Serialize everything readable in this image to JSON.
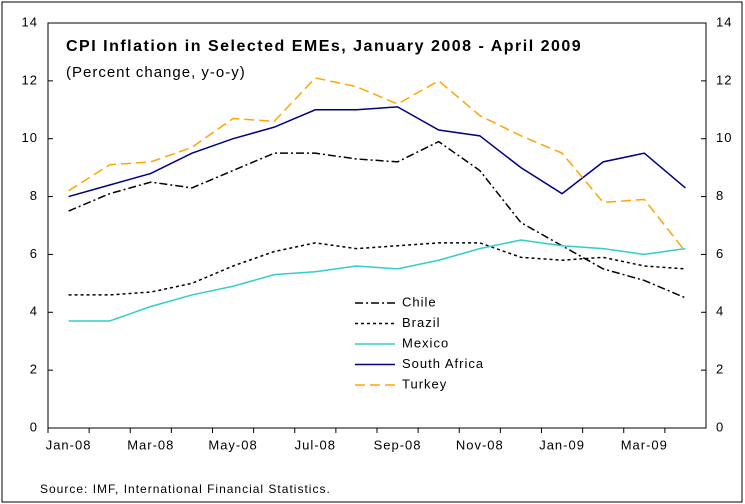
{
  "chart_data": {
    "type": "line",
    "title": "CPI Inflation in Selected EMEs, January 2008 - April 2009",
    "subtitle": "(Percent change, y-o-y)",
    "source": "Source: IMF, International Financial Statistics.",
    "categories": [
      "Jan-08",
      null,
      "Mar-08",
      null,
      "May-08",
      null,
      "Jul-08",
      null,
      "Sep-08",
      null,
      "Nov-08",
      null,
      "Jan-09",
      null,
      "Mar-09",
      null
    ],
    "series": [
      {
        "name": "Chile",
        "color": "#000000",
        "dash": "8,3,2,3",
        "values": [
          7.5,
          8.1,
          8.5,
          8.3,
          8.9,
          9.5,
          9.5,
          9.3,
          9.2,
          9.9,
          8.9,
          7.1,
          6.3,
          5.5,
          5.1,
          4.5
        ]
      },
      {
        "name": "Brazil",
        "color": "#000000",
        "dash": "3,3",
        "values": [
          4.6,
          4.6,
          4.7,
          5.0,
          5.6,
          6.1,
          6.4,
          6.2,
          6.3,
          6.4,
          6.4,
          5.9,
          5.8,
          5.9,
          5.6,
          5.5
        ]
      },
      {
        "name": "Mexico",
        "color": "#33cccc",
        "dash": "none",
        "values": [
          3.7,
          3.7,
          4.2,
          4.6,
          4.9,
          5.3,
          5.4,
          5.6,
          5.5,
          5.8,
          6.2,
          6.5,
          6.3,
          6.2,
          6.0,
          6.2
        ]
      },
      {
        "name": "South Africa",
        "color": "#000080",
        "dash": "none",
        "values": [
          8.0,
          8.4,
          8.8,
          9.5,
          10.0,
          10.4,
          11.0,
          11.0,
          11.1,
          10.3,
          10.1,
          9.0,
          8.1,
          9.2,
          9.5,
          8.3
        ]
      },
      {
        "name": "Turkey",
        "color": "#ffa500",
        "dash": "10,5",
        "values": [
          8.2,
          9.1,
          9.2,
          9.7,
          10.7,
          10.6,
          12.1,
          11.8,
          11.2,
          12.0,
          10.8,
          10.1,
          9.5,
          7.8,
          7.9,
          6.1
        ]
      }
    ],
    "ylim": [
      0,
      14
    ],
    "yticks": [
      0,
      2,
      4,
      6,
      8,
      10,
      12,
      14
    ],
    "y2lim": [
      0,
      14
    ],
    "y2ticks": [
      0,
      2,
      4,
      6,
      8,
      10,
      12,
      14
    ],
    "grid": false
  }
}
